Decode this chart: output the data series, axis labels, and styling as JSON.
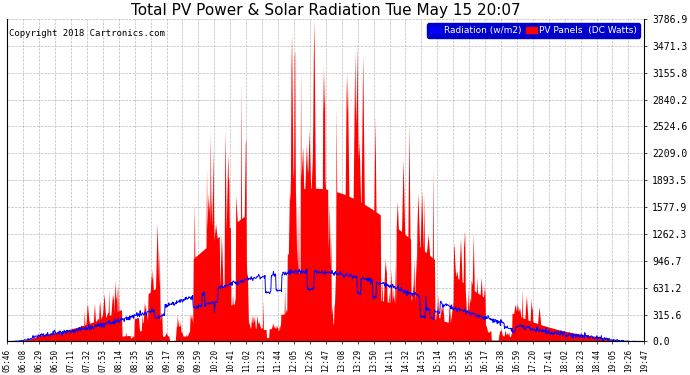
{
  "title": "Total PV Power & Solar Radiation Tue May 15 20:07",
  "copyright": "Copyright 2018 Cartronics.com",
  "legend_labels": [
    "Radiation (w/m2)",
    "PV Panels  (DC Watts)"
  ],
  "legend_colors": [
    "blue",
    "red"
  ],
  "y_tick_labels": [
    "0.0",
    "315.6",
    "631.2",
    "946.7",
    "1262.3",
    "1577.9",
    "1893.5",
    "2209.0",
    "2524.6",
    "2840.2",
    "3155.8",
    "3471.3",
    "3786.9"
  ],
  "y_tick_values": [
    0.0,
    315.6,
    631.2,
    946.7,
    1262.3,
    1577.9,
    1893.5,
    2209.0,
    2524.6,
    2840.2,
    3155.8,
    3471.3,
    3786.9
  ],
  "ylim": [
    0,
    3786.9
  ],
  "background_color": "#ffffff",
  "plot_bg_color": "#ffffff",
  "grid_color": "#aaaaaa",
  "red_color": "#ff0000",
  "blue_color": "#0000ff",
  "title_fontsize": 11,
  "x_tick_labels": [
    "05:46",
    "06:08",
    "06:29",
    "06:50",
    "07:11",
    "07:32",
    "07:53",
    "08:14",
    "08:35",
    "08:56",
    "09:17",
    "09:38",
    "09:59",
    "10:20",
    "10:41",
    "11:02",
    "11:23",
    "11:44",
    "12:05",
    "12:26",
    "12:47",
    "13:08",
    "13:29",
    "13:50",
    "14:11",
    "14:32",
    "14:53",
    "15:14",
    "15:35",
    "15:56",
    "16:17",
    "16:38",
    "16:59",
    "17:20",
    "17:41",
    "18:02",
    "18:23",
    "18:44",
    "19:05",
    "19:26",
    "19:47"
  ]
}
